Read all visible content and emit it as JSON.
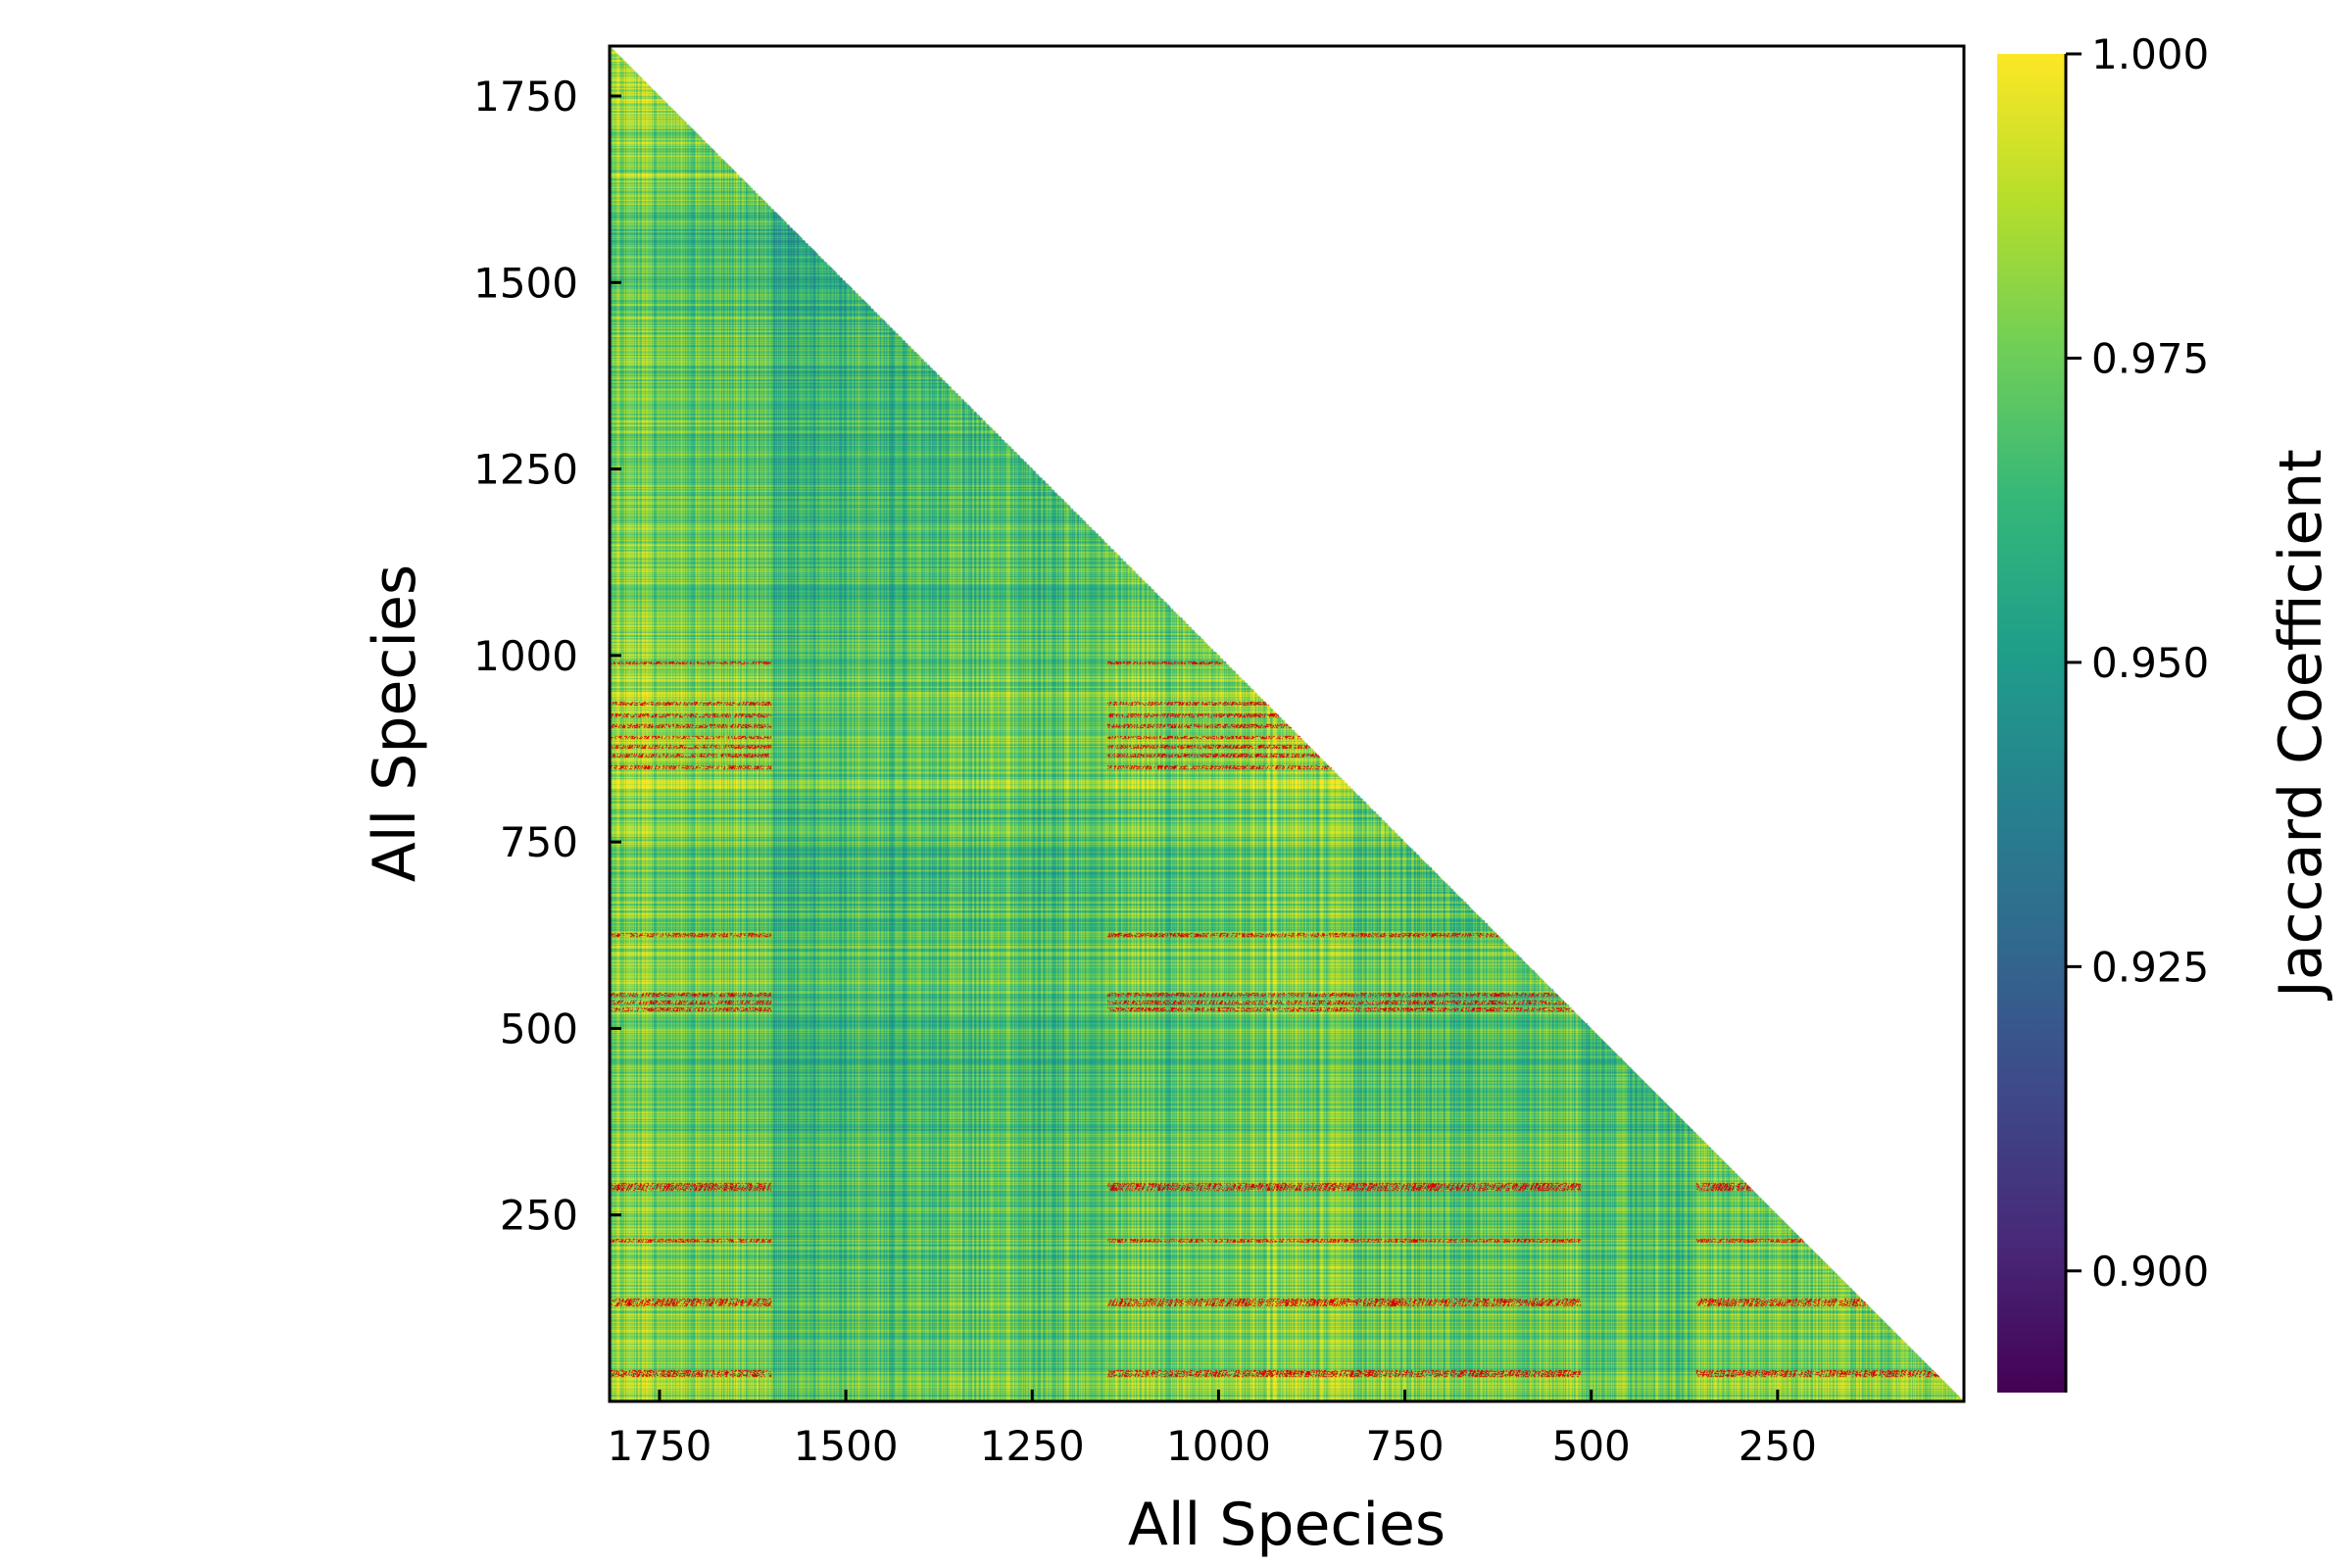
{
  "chart_data": {
    "type": "heatmap",
    "subtype": "lower-triangular similarity matrix",
    "title": "",
    "xlabel": "All Species",
    "ylabel": "All Species",
    "xlim": [
      1817,
      1
    ],
    "ylim": [
      1,
      1817
    ],
    "x_reversed": true,
    "x_ticks": [
      1750,
      1500,
      1250,
      1000,
      750,
      500,
      250
    ],
    "y_ticks": [
      1750,
      1500,
      1250,
      1000,
      750,
      500,
      250
    ],
    "x_tick_labels": [
      "1750",
      "1500",
      "1250",
      "1000",
      "750",
      "500",
      "250"
    ],
    "y_tick_labels": [
      "1750",
      "1500",
      "1250",
      "1000",
      "750",
      "500",
      "250"
    ],
    "colorbar": {
      "label": "Jaccard Coefficient",
      "colormap": "viridis",
      "range": [
        0.89,
        1.0
      ],
      "ticks": [
        1.0,
        0.975,
        0.95,
        0.925,
        0.9
      ],
      "tick_labels": [
        "1.000",
        "0.975",
        "0.950",
        "0.925",
        "0.900"
      ],
      "below_range_color": "#d90000"
    },
    "clusters": [
      {
        "range": [
          1710,
          1817
        ],
        "level": 0.985
      },
      {
        "range": [
          1600,
          1710
        ],
        "level": 0.975
      },
      {
        "range": [
          1500,
          1600
        ],
        "level": 0.955
      },
      {
        "range": [
          1150,
          1500
        ],
        "level": 0.965
      },
      {
        "range": [
          980,
          1150
        ],
        "level": 0.975
      },
      {
        "range": [
          820,
          980
        ],
        "level": 0.983
      },
      {
        "range": [
          620,
          820
        ],
        "level": 0.97
      },
      {
        "range": [
          515,
          620
        ],
        "level": 0.974
      },
      {
        "range": [
          360,
          515
        ],
        "level": 0.962
      },
      {
        "range": [
          140,
          360
        ],
        "level": 0.975
      },
      {
        "range": [
          1,
          140
        ],
        "level": 0.978
      }
    ],
    "low_similarity_rows": [
      990,
      935,
      920,
      905,
      890,
      878,
      866,
      850,
      625,
      545,
      535,
      525,
      290,
      285,
      215,
      135,
      130,
      40,
      36
    ],
    "colors": {
      "colormap_stops": [
        "#440154",
        "#482878",
        "#3e4989",
        "#31688e",
        "#26828e",
        "#1f9e89",
        "#35b779",
        "#6ece58",
        "#b5de2b",
        "#fde725"
      ],
      "below_range": "#d90000"
    }
  }
}
